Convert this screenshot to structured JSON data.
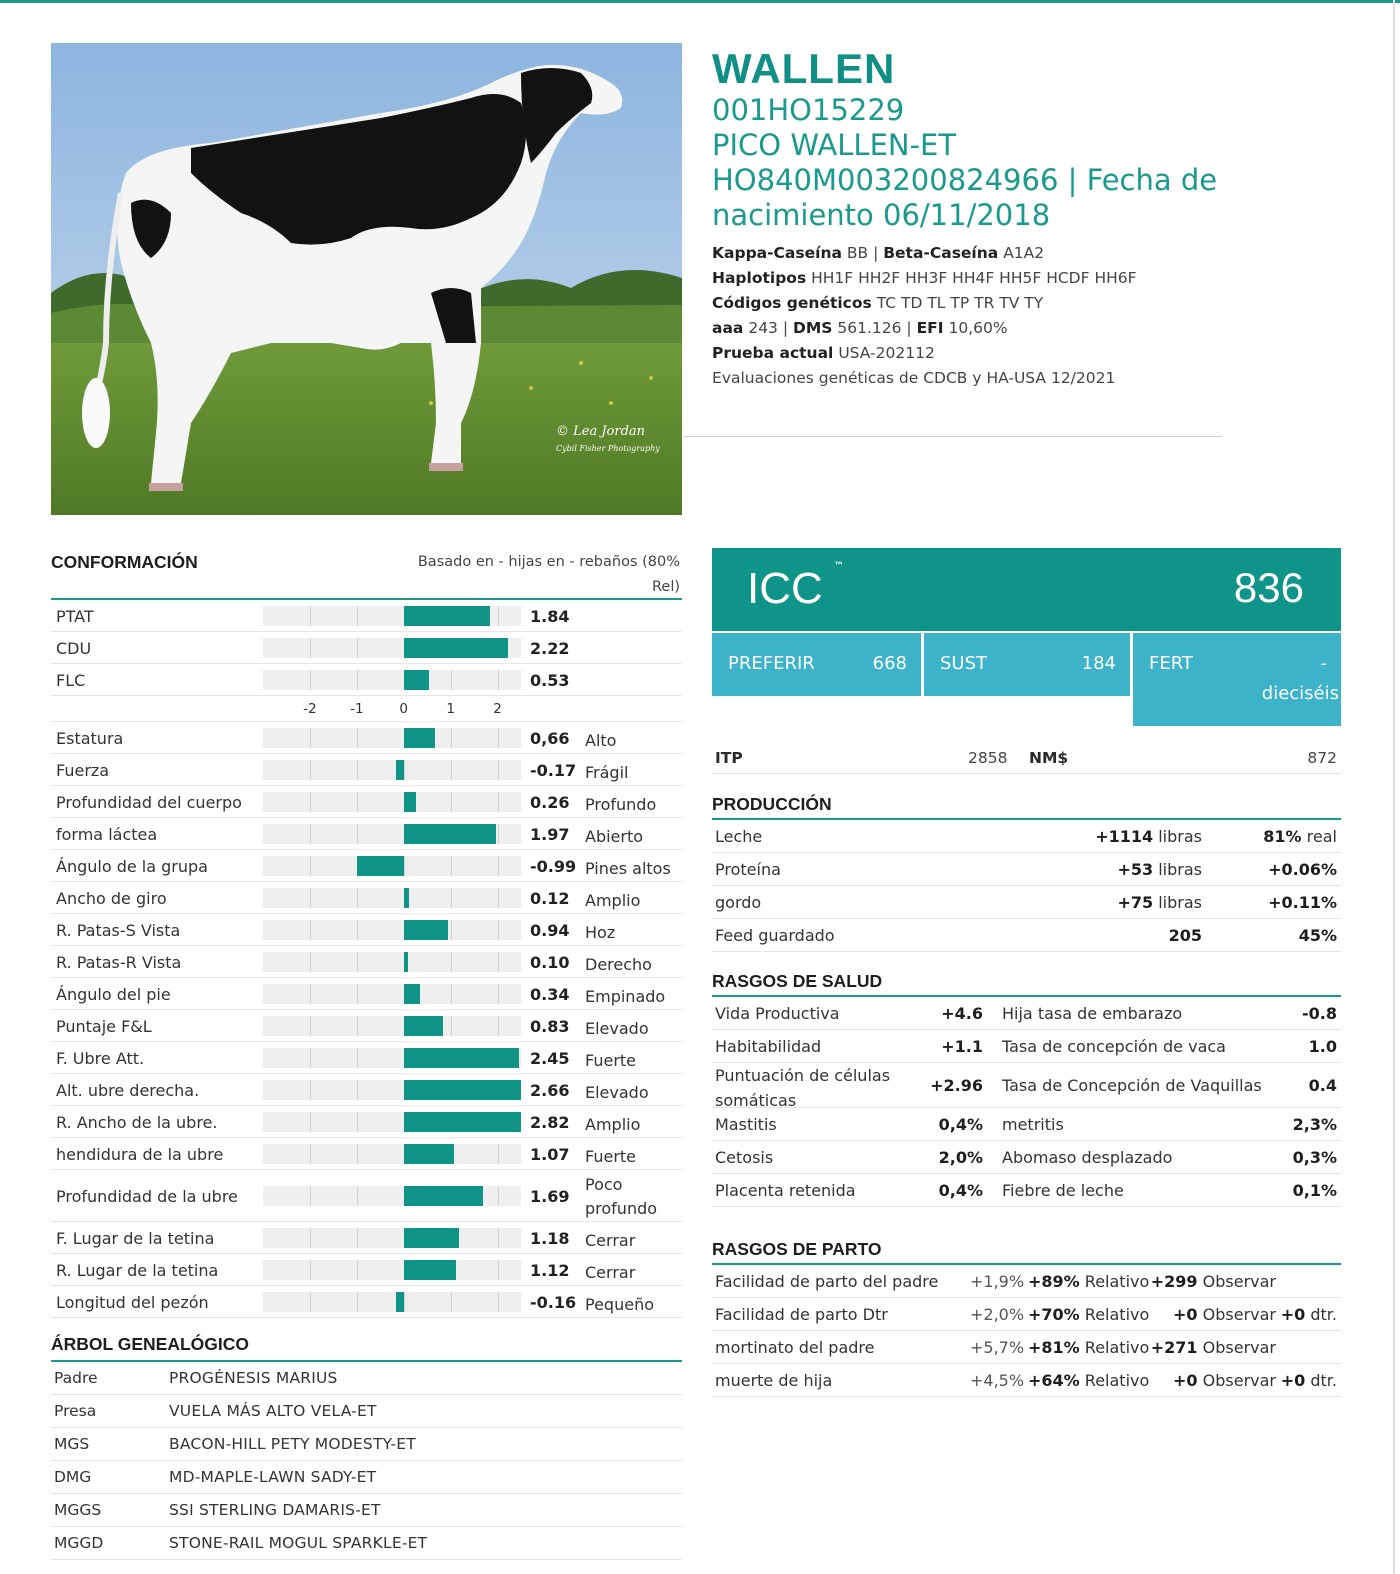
{
  "header": {
    "name": "WALLEN",
    "code": "001HO15229",
    "full_name": "PICO WALLEN-ET",
    "registration": "HO840M003200824966 | Fecha de",
    "birth": "nacimiento 06/11/2018",
    "kappa_label": "Kappa-Caseína",
    "kappa_value": "BB |",
    "beta_label": "Beta-Caseína",
    "beta_value": "A1A2",
    "haplo_label": "Haplotipos",
    "haplo_value": "HH1F HH2F HH3F HH4F HH5F HCDF HH6F",
    "codes_label": "Códigos genéticos",
    "codes_value": "TC TD TL TP TR TV TY",
    "aaa_label": "aaa",
    "aaa_value": "243 |",
    "dms_label": "DMS",
    "dms_value": "561.126 |",
    "efi_label": "EFI",
    "efi_value": "10,60%",
    "test_label": "Prueba actual",
    "test_value": "USA-202112",
    "evals": "Evaluaciones genéticas de CDCB y HA-USA 12/2021"
  },
  "photo": {
    "watermark1": "© Lea Jordan",
    "watermark2": "Cybil Fisher Photography"
  },
  "conformation": {
    "title": "CONFORMACIÓN",
    "basis_line1": "Basado en - hijas en - rebaños (80%",
    "basis_line2": "Rel)",
    "axis_ticks": [
      "-2",
      "-1",
      "0",
      "1",
      "2"
    ],
    "scale": {
      "min": -3,
      "max": 2.5
    },
    "summary": [
      {
        "label": "PTAT",
        "value": 1.84,
        "display": "1.84"
      },
      {
        "label": "CDU",
        "value": 2.22,
        "display": "2.22"
      },
      {
        "label": "FLC",
        "value": 0.53,
        "display": "0.53"
      }
    ],
    "traits": [
      {
        "label": "Estatura",
        "value": 0.66,
        "display": "0,66",
        "desc": "Alto"
      },
      {
        "label": "Fuerza",
        "value": -0.17,
        "display": "-0.17",
        "desc": "Frágil"
      },
      {
        "label": "Profundidad del cuerpo",
        "value": 0.26,
        "display": "0.26",
        "desc": "Profundo"
      },
      {
        "label": "forma láctea",
        "value": 1.97,
        "display": "1.97",
        "desc": "Abierto"
      },
      {
        "label": "Ángulo de la grupa",
        "value": -0.99,
        "display": "-0.99",
        "desc": "Pines altos"
      },
      {
        "label": "Ancho de giro",
        "value": 0.12,
        "display": "0.12",
        "desc": "Amplio"
      },
      {
        "label": "R. Patas-S Vista",
        "value": 0.94,
        "display": "0.94",
        "desc": "Hoz"
      },
      {
        "label": "R. Patas-R Vista",
        "value": 0.1,
        "display": "0.10",
        "desc": "Derecho"
      },
      {
        "label": "Ángulo del pie",
        "value": 0.34,
        "display": "0.34",
        "desc": "Empinado"
      },
      {
        "label": "Puntaje F&L",
        "value": 0.83,
        "display": "0.83",
        "desc": "Elevado"
      },
      {
        "label": "F. Ubre Att.",
        "value": 2.45,
        "display": "2.45",
        "desc": "Fuerte"
      },
      {
        "label": "Alt. ubre derecha.",
        "value": 2.66,
        "display": "2.66",
        "desc": "Elevado"
      },
      {
        "label": "R. Ancho de la ubre.",
        "value": 2.82,
        "display": "2.82",
        "desc": "Amplio"
      },
      {
        "label": "hendidura de la ubre",
        "value": 1.07,
        "display": "1.07",
        "desc": "Fuerte"
      },
      {
        "label": "Profundidad de la ubre",
        "value": 1.69,
        "display": "1.69",
        "desc": "Poco profundo"
      },
      {
        "label": "F. Lugar de la tetina",
        "value": 1.18,
        "display": "1.18",
        "desc": "Cerrar"
      },
      {
        "label": "R. Lugar de la tetina",
        "value": 1.12,
        "display": "1.12",
        "desc": "Cerrar"
      },
      {
        "label": "Longitud del pezón",
        "value": -0.16,
        "display": "-0.16",
        "desc": "Pequeño"
      }
    ]
  },
  "pedigree": {
    "title": "ÁRBOL GENEALÓGICO",
    "rows": [
      {
        "k": "Padre",
        "v": "PROGÉNESIS MARIUS"
      },
      {
        "k": "Presa",
        "v": "VUELA MÁS ALTO VELA-ET"
      },
      {
        "k": "MGS",
        "v": "BACON-HILL PETY MODESTY-ET"
      },
      {
        "k": "DMG",
        "v": "MD-MAPLE-LAWN SADY-ET"
      },
      {
        "k": "MGGS",
        "v": "SSI STERLING DAMARIS-ET"
      },
      {
        "k": "MGGD",
        "v": "STONE-RAIL MOGUL SPARKLE-ET"
      }
    ]
  },
  "icc": {
    "label": "ICC",
    "tm": "™",
    "value": "836",
    "preferir_label": "PREFERIR",
    "preferir_value": "668",
    "sust_label": "SUST",
    "sust_value": "184",
    "fert_label": "FERT",
    "fert_value": "-",
    "fert_value2": "dieciséis"
  },
  "itp": {
    "itp_label": "ITP",
    "itp_value": "2858",
    "nm_label": "NM$",
    "nm_value": "872"
  },
  "production": {
    "title": "PRODUCCIÓN",
    "rows": [
      {
        "label": "Leche",
        "amount": "+1114",
        "unit": "libras",
        "pct": "81%",
        "pct_unit": "real"
      },
      {
        "label": "Proteína",
        "amount": "+53",
        "unit": "libras",
        "pct": "+0.06%",
        "pct_unit": ""
      },
      {
        "label": "gordo",
        "amount": "+75",
        "unit": "libras",
        "pct": "+0.11%",
        "pct_unit": ""
      },
      {
        "label": "Feed guardado",
        "amount": "205",
        "unit": "",
        "pct": "45%",
        "pct_unit": ""
      }
    ]
  },
  "health": {
    "title": "RASGOS DE SALUD",
    "rows": [
      {
        "l1": "Vida Productiva",
        "v1": "+4.6",
        "l2": "Hija tasa de embarazo",
        "v2": "-0.8"
      },
      {
        "l1": "Habitabilidad",
        "v1": "+1.1",
        "l2": "Tasa de concepción de vaca",
        "v2": "1.0"
      },
      {
        "l1": "Puntuación de células",
        "l1b": "somáticas",
        "v1": "+2.96",
        "l2": "Tasa de Concepción de Vaquillas",
        "v2": "0.4"
      },
      {
        "l1": "Mastitis",
        "v1": "0,4%",
        "l2": "metritis",
        "v2": "2,3%"
      },
      {
        "l1": "Cetosis",
        "v1": "2,0%",
        "l2": "Abomaso desplazado",
        "v2": "0,3%"
      },
      {
        "l1": "Placenta retenida",
        "v1": "0,4%",
        "l2": "Fiebre de leche",
        "v2": "0,1%"
      }
    ]
  },
  "calving": {
    "title": "RASGOS DE PARTO",
    "rows": [
      {
        "label": "Facilidad de parto del padre",
        "pct": "+1,9%",
        "rel": "+89%",
        "rel_unit": "Relativo",
        "obs": "+299",
        "obs_unit": "Observar",
        "dtr": "",
        "dtr_unit": ""
      },
      {
        "label": "Facilidad de parto Dtr",
        "pct": "+2,0%",
        "rel": "+70%",
        "rel_unit": "Relativo",
        "obs": "+0",
        "obs_unit": "Observar",
        "dtr": "+0",
        "dtr_unit": "dtr."
      },
      {
        "label": "mortinato del padre",
        "pct": "+5,7%",
        "rel": "+81%",
        "rel_unit": "Relativo",
        "obs": "+271",
        "obs_unit": "Observar",
        "dtr": "",
        "dtr_unit": ""
      },
      {
        "label": "muerte de hija",
        "pct": "+4,5%",
        "rel": "+64%",
        "rel_unit": "Relativo",
        "obs": "+0",
        "obs_unit": "Observar",
        "dtr": "+0",
        "dtr_unit": "dtr."
      }
    ]
  }
}
